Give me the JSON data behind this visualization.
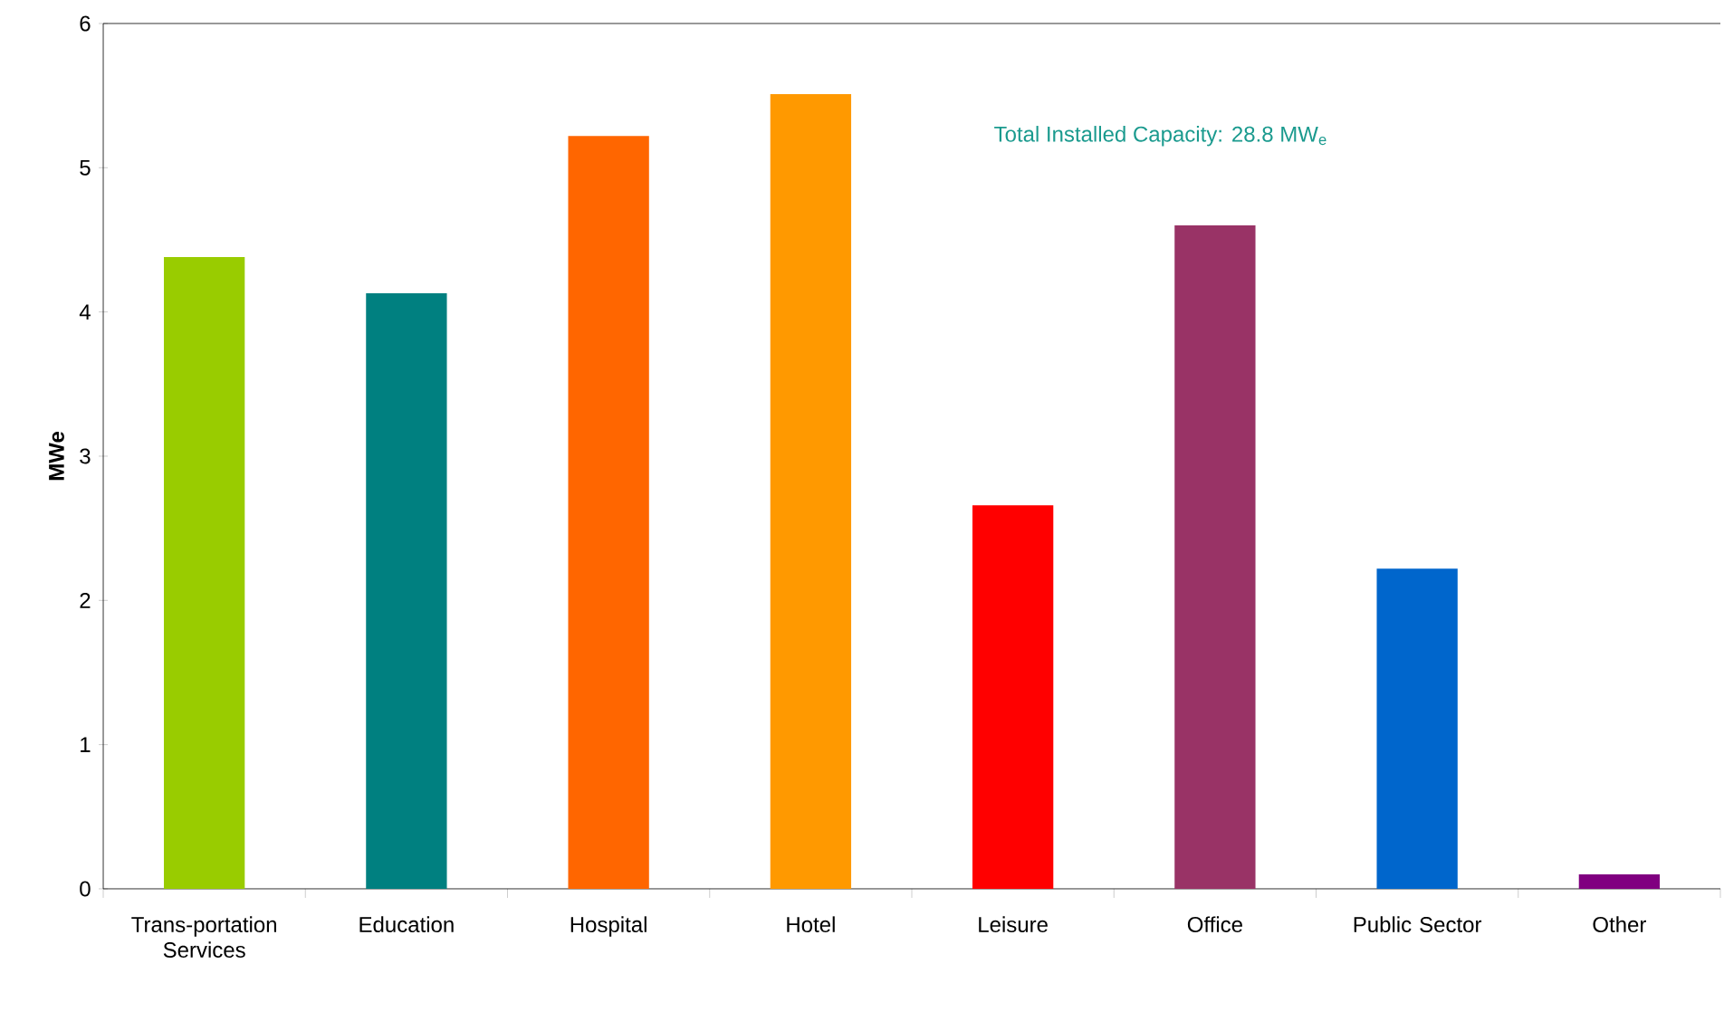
{
  "chart_data": {
    "type": "bar",
    "ylabel": "MWe",
    "categories": [
      "Trans-portation Services",
      "Education",
      "Hospital",
      "Hotel",
      "Leisure",
      "Office",
      "Public Sector",
      "Other"
    ],
    "values": [
      4.38,
      4.13,
      5.22,
      5.51,
      2.66,
      4.6,
      2.22,
      0.1
    ],
    "colors": [
      "#99cc00",
      "#008080",
      "#ff6600",
      "#ff9900",
      "#ff0000",
      "#993366",
      "#0066cc",
      "#800080"
    ],
    "ylim": [
      0,
      6
    ],
    "yticks": [
      0,
      1,
      2,
      3,
      4,
      5,
      6
    ],
    "annotations": [
      "Total Installed Capacity: 28.8 MW$_{e}$"
    ]
  }
}
